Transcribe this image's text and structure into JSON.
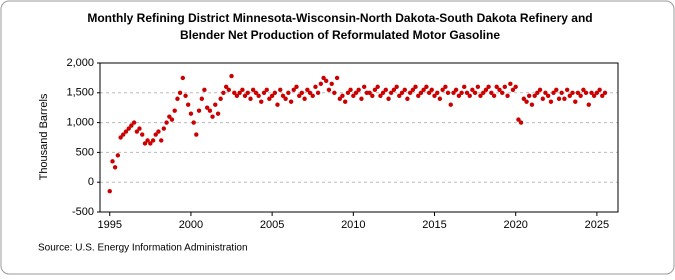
{
  "chart_data": {
    "type": "scatter",
    "title": [
      "Monthly Refining District Minnesota-Wisconsin-North Dakota-South Dakota Refinery and",
      "Blender Net Production of Reformulated Motor Gasoline"
    ],
    "y_label": "Thousand Barrels",
    "source": "Source: U.S. Energy Information Administration",
    "color": "#cc0000",
    "grid": true,
    "xlim": [
      1994.4,
      2026.3
    ],
    "ylim": [
      -500,
      2000
    ],
    "xticks": [
      1995,
      2000,
      2005,
      2010,
      2015,
      2020,
      2025
    ],
    "yticks": [
      {
        "value": 2000,
        "label": "2,000"
      },
      {
        "value": 1500,
        "label": "1,500"
      },
      {
        "value": 1000,
        "label": "1,000"
      },
      500,
      0,
      -500
    ],
    "x": [
      1995.0,
      1995.17,
      1995.33,
      1995.5,
      1995.67,
      1995.83,
      1996.0,
      1996.17,
      1996.33,
      1996.5,
      1996.67,
      1996.83,
      1997.0,
      1997.17,
      1997.33,
      1997.5,
      1997.67,
      1997.83,
      1998.0,
      1998.17,
      1998.33,
      1998.5,
      1998.67,
      1998.83,
      1999.0,
      1999.17,
      1999.33,
      1999.5,
      1999.67,
      1999.83,
      2000.0,
      2000.17,
      2000.33,
      2000.5,
      2000.67,
      2000.83,
      2001.0,
      2001.17,
      2001.33,
      2001.5,
      2001.67,
      2001.83,
      2002.0,
      2002.17,
      2002.33,
      2002.5,
      2002.67,
      2002.83,
      2003.0,
      2003.17,
      2003.33,
      2003.5,
      2003.67,
      2003.83,
      2004.0,
      2004.17,
      2004.33,
      2004.5,
      2004.67,
      2004.83,
      2005.0,
      2005.17,
      2005.33,
      2005.5,
      2005.67,
      2005.83,
      2006.0,
      2006.17,
      2006.33,
      2006.5,
      2006.67,
      2006.83,
      2007.0,
      2007.17,
      2007.33,
      2007.5,
      2007.67,
      2007.83,
      2008.0,
      2008.17,
      2008.33,
      2008.5,
      2008.67,
      2008.83,
      2009.0,
      2009.17,
      2009.33,
      2009.5,
      2009.67,
      2009.83,
      2010.0,
      2010.17,
      2010.33,
      2010.5,
      2010.67,
      2010.83,
      2011.0,
      2011.17,
      2011.33,
      2011.5,
      2011.67,
      2011.83,
      2012.0,
      2012.17,
      2012.33,
      2012.5,
      2012.67,
      2012.83,
      2013.0,
      2013.17,
      2013.33,
      2013.5,
      2013.67,
      2013.83,
      2014.0,
      2014.17,
      2014.33,
      2014.5,
      2014.67,
      2014.83,
      2015.0,
      2015.17,
      2015.33,
      2015.5,
      2015.67,
      2015.83,
      2016.0,
      2016.17,
      2016.33,
      2016.5,
      2016.67,
      2016.83,
      2017.0,
      2017.17,
      2017.33,
      2017.5,
      2017.67,
      2017.83,
      2018.0,
      2018.17,
      2018.33,
      2018.5,
      2018.67,
      2018.83,
      2019.0,
      2019.17,
      2019.33,
      2019.5,
      2019.67,
      2019.83,
      2020.0,
      2020.17,
      2020.33,
      2020.5,
      2020.67,
      2020.83,
      2021.0,
      2021.17,
      2021.33,
      2021.5,
      2021.67,
      2021.83,
      2022.0,
      2022.17,
      2022.33,
      2022.5,
      2022.67,
      2022.83,
      2023.0,
      2023.17,
      2023.33,
      2023.5,
      2023.67,
      2023.83,
      2024.0,
      2024.17,
      2024.33,
      2024.5,
      2024.67,
      2024.83,
      2025.0,
      2025.17,
      2025.33,
      2025.5
    ],
    "values": [
      -150,
      350,
      250,
      450,
      750,
      800,
      850,
      900,
      950,
      1000,
      850,
      900,
      800,
      650,
      700,
      650,
      700,
      800,
      850,
      700,
      900,
      1000,
      1100,
      1050,
      1200,
      1400,
      1500,
      1750,
      1450,
      1300,
      1150,
      1000,
      800,
      1200,
      1400,
      1550,
      1250,
      1200,
      1100,
      1300,
      1150,
      1400,
      1500,
      1600,
      1550,
      1780,
      1500,
      1450,
      1500,
      1550,
      1450,
      1500,
      1400,
      1550,
      1500,
      1450,
      1350,
      1500,
      1550,
      1400,
      1450,
      1500,
      1300,
      1550,
      1450,
      1400,
      1500,
      1350,
      1550,
      1600,
      1450,
      1500,
      1400,
      1550,
      1500,
      1450,
      1600,
      1500,
      1650,
      1750,
      1700,
      1550,
      1650,
      1500,
      1750,
      1400,
      1450,
      1350,
      1500,
      1550,
      1450,
      1500,
      1550,
      1400,
      1600,
      1500,
      1500,
      1450,
      1550,
      1600,
      1450,
      1500,
      1550,
      1400,
      1500,
      1550,
      1600,
      1450,
      1500,
      1550,
      1400,
      1500,
      1550,
      1600,
      1450,
      1500,
      1550,
      1600,
      1500,
      1550,
      1450,
      1500,
      1400,
      1550,
      1600,
      1500,
      1300,
      1500,
      1550,
      1450,
      1500,
      1600,
      1500,
      1450,
      1550,
      1500,
      1600,
      1450,
      1500,
      1550,
      1600,
      1500,
      1450,
      1600,
      1550,
      1500,
      1600,
      1450,
      1650,
      1550,
      1600,
      1050,
      1000,
      1400,
      1350,
      1450,
      1300,
      1450,
      1500,
      1550,
      1400,
      1500,
      1450,
      1350,
      1500,
      1550,
      1400,
      1500,
      1400,
      1550,
      1450,
      1500,
      1350,
      1500,
      1450,
      1550,
      1500,
      1300,
      1500,
      1450,
      1500,
      1550,
      1450,
      1500
    ]
  }
}
